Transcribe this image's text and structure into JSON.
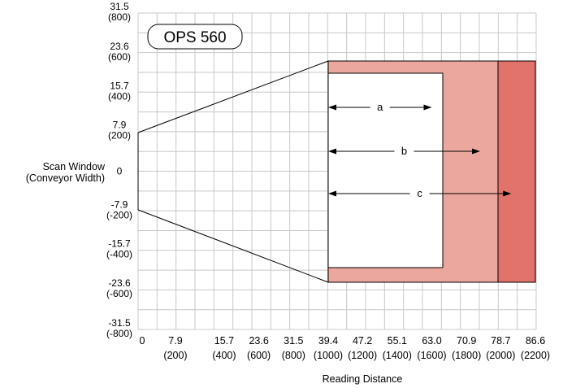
{
  "badge": "OPS 560",
  "y_axis": {
    "title_line1": "Scan Window",
    "title_line2": "(Conveyor Width)",
    "ticks": [
      {
        "value": 31.5,
        "line1": "31.5",
        "line2": "(800)"
      },
      {
        "value": 23.6,
        "line1": "23.6",
        "line2": "(600)"
      },
      {
        "value": 15.7,
        "line1": "15.7",
        "line2": "(400)"
      },
      {
        "value": 7.9,
        "line1": "7.9",
        "line2": "(200)"
      },
      {
        "value": 0,
        "line1": "0",
        "line2": ""
      },
      {
        "value": -7.9,
        "line1": "-7.9",
        "line2": "(-200)"
      },
      {
        "value": -15.7,
        "line1": "-15.7",
        "line2": "(-400)"
      },
      {
        "value": -23.6,
        "line1": "-23.6",
        "line2": "(-600)"
      },
      {
        "value": -31.5,
        "line1": "-31.5",
        "line2": "(-800)"
      }
    ]
  },
  "x_axis": {
    "title": "Reading Distance",
    "ticks": [
      {
        "value": 0,
        "line1": "0",
        "line2": ""
      },
      {
        "value": 7.9,
        "line1": "7.9",
        "line2": "(200)"
      },
      {
        "value": 15.7,
        "line1": "15.7",
        "line2": "(400)"
      },
      {
        "value": 23.6,
        "line1": "23.6",
        "line2": "(600)"
      },
      {
        "value": 31.5,
        "line1": "31.5",
        "line2": "(800)"
      },
      {
        "value": 39.4,
        "line1": "39.4",
        "line2": "(1000)"
      },
      {
        "value": 47.2,
        "line1": "47.2",
        "line2": "(1200)"
      },
      {
        "value": 55.1,
        "line1": "55.1",
        "line2": "(1400)"
      },
      {
        "value": 63.0,
        "line1": "63.0",
        "line2": "(1600)"
      },
      {
        "value": 70.9,
        "line1": "70.9",
        "line2": "(1800)"
      },
      {
        "value": 78.7,
        "line1": "78.7",
        "line2": "(2000)"
      },
      {
        "value": 86.6,
        "line1": "86.6",
        "line2": "(2200)"
      }
    ]
  },
  "ranges": [
    {
      "label": "a",
      "end_mm": 1600
    },
    {
      "label": "b",
      "end_mm": 1880
    },
    {
      "label": "c",
      "end_mm": 2060
    }
  ],
  "colors": {
    "zone_light": "#eba79e",
    "zone_dark": "#e1736b",
    "window": "#ffffff",
    "grid": "#c8c8c8",
    "line": "#000000"
  }
}
